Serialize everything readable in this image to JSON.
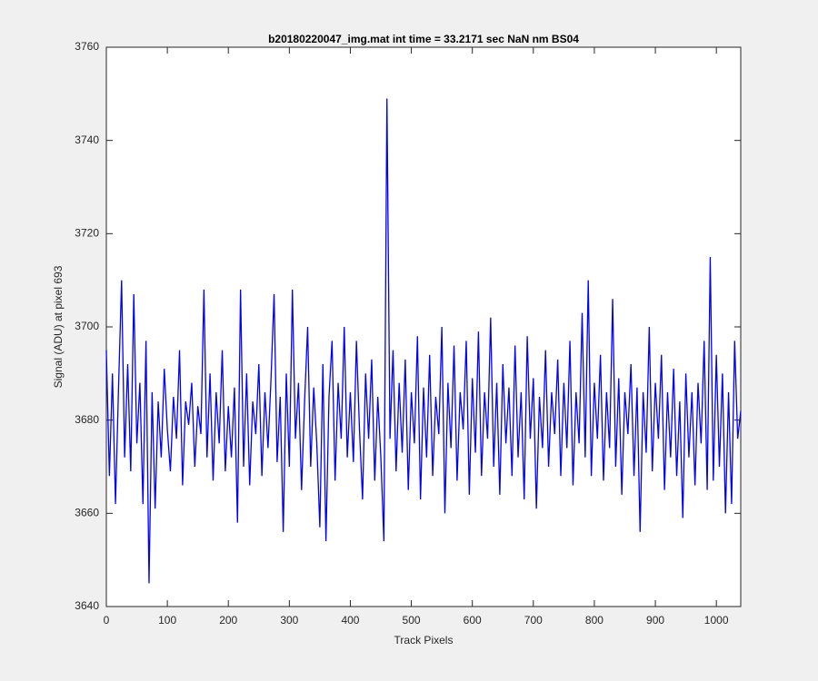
{
  "chart_data": {
    "type": "line",
    "title": "b20180220047_img.mat int time = 33.2171 sec  NaN nm BS04",
    "xlabel": "Track Pixels",
    "ylabel": "Signal (ADU) at pixel 693",
    "color": "#0000ff",
    "xlim": [
      0,
      1040
    ],
    "ylim": [
      3640,
      3760
    ],
    "xticks": [
      0,
      100,
      200,
      300,
      400,
      500,
      600,
      700,
      800,
      900,
      1000
    ],
    "yticks": [
      3640,
      3660,
      3680,
      3700,
      3720,
      3740,
      3760
    ],
    "x": [
      0,
      5,
      10,
      15,
      20,
      25,
      30,
      35,
      40,
      45,
      50,
      55,
      60,
      65,
      70,
      75,
      80,
      85,
      90,
      95,
      100,
      105,
      110,
      115,
      120,
      125,
      130,
      135,
      140,
      145,
      150,
      155,
      160,
      165,
      170,
      175,
      180,
      185,
      190,
      195,
      200,
      205,
      210,
      215,
      220,
      225,
      230,
      235,
      240,
      245,
      250,
      255,
      260,
      265,
      270,
      275,
      280,
      285,
      290,
      295,
      300,
      305,
      310,
      315,
      320,
      325,
      330,
      335,
      340,
      345,
      350,
      355,
      360,
      365,
      370,
      375,
      380,
      385,
      390,
      395,
      400,
      405,
      410,
      415,
      420,
      425,
      430,
      435,
      440,
      445,
      450,
      455,
      460,
      465,
      470,
      475,
      480,
      485,
      490,
      495,
      500,
      505,
      510,
      515,
      520,
      525,
      530,
      535,
      540,
      545,
      550,
      555,
      560,
      565,
      570,
      575,
      580,
      585,
      590,
      595,
      600,
      605,
      610,
      615,
      620,
      625,
      630,
      635,
      640,
      645,
      650,
      655,
      660,
      665,
      670,
      675,
      680,
      685,
      690,
      695,
      700,
      705,
      710,
      715,
      720,
      725,
      730,
      735,
      740,
      745,
      750,
      755,
      760,
      765,
      770,
      775,
      780,
      785,
      790,
      795,
      800,
      805,
      810,
      815,
      820,
      825,
      830,
      835,
      840,
      845,
      850,
      855,
      860,
      865,
      870,
      875,
      880,
      885,
      890,
      895,
      900,
      905,
      910,
      915,
      920,
      925,
      930,
      935,
      940,
      945,
      950,
      955,
      960,
      965,
      970,
      975,
      980,
      985,
      990,
      995,
      1000,
      1005,
      1010,
      1015,
      1020,
      1025,
      1030,
      1035,
      1040
    ],
    "values": [
      3695,
      3668,
      3690,
      3662,
      3687,
      3710,
      3672,
      3692,
      3669,
      3707,
      3675,
      3688,
      3662,
      3697,
      3645,
      3686,
      3661,
      3684,
      3672,
      3691,
      3678,
      3669,
      3685,
      3676,
      3695,
      3666,
      3684,
      3679,
      3688,
      3670,
      3683,
      3677,
      3708,
      3672,
      3690,
      3667,
      3686,
      3675,
      3695,
      3669,
      3683,
      3672,
      3687,
      3658,
      3708,
      3670,
      3690,
      3666,
      3684,
      3677,
      3692,
      3668,
      3686,
      3674,
      3689,
      3707,
      3671,
      3685,
      3656,
      3690,
      3670,
      3708,
      3676,
      3688,
      3665,
      3684,
      3700,
      3670,
      3687,
      3675,
      3657,
      3692,
      3654,
      3685,
      3697,
      3667,
      3688,
      3676,
      3700,
      3672,
      3686,
      3671,
      3697,
      3678,
      3663,
      3690,
      3676,
      3693,
      3667,
      3685,
      3672,
      3654,
      3749,
      3676,
      3695,
      3669,
      3688,
      3673,
      3693,
      3665,
      3686,
      3675,
      3698,
      3663,
      3687,
      3672,
      3694,
      3668,
      3685,
      3677,
      3700,
      3660,
      3688,
      3674,
      3696,
      3667,
      3686,
      3678,
      3697,
      3664,
      3689,
      3673,
      3699,
      3668,
      3686,
      3676,
      3702,
      3670,
      3688,
      3664,
      3692,
      3675,
      3687,
      3668,
      3696,
      3672,
      3686,
      3663,
      3698,
      3676,
      3689,
      3661,
      3685,
      3674,
      3695,
      3670,
      3686,
      3677,
      3693,
      3668,
      3688,
      3674,
      3697,
      3666,
      3686,
      3675,
      3703,
      3672,
      3710,
      3668,
      3688,
      3676,
      3694,
      3667,
      3686,
      3674,
      3706,
      3670,
      3689,
      3664,
      3686,
      3677,
      3692,
      3668,
      3687,
      3656,
      3686,
      3673,
      3700,
      3669,
      3688,
      3676,
      3694,
      3665,
      3686,
      3672,
      3691,
      3668,
      3684,
      3659,
      3690,
      3672,
      3686,
      3666,
      3688,
      3675,
      3697,
      3665,
      3715,
      3667,
      3694,
      3670,
      3690,
      3660,
      3686,
      3662,
      3697,
      3676,
      3682
    ]
  }
}
